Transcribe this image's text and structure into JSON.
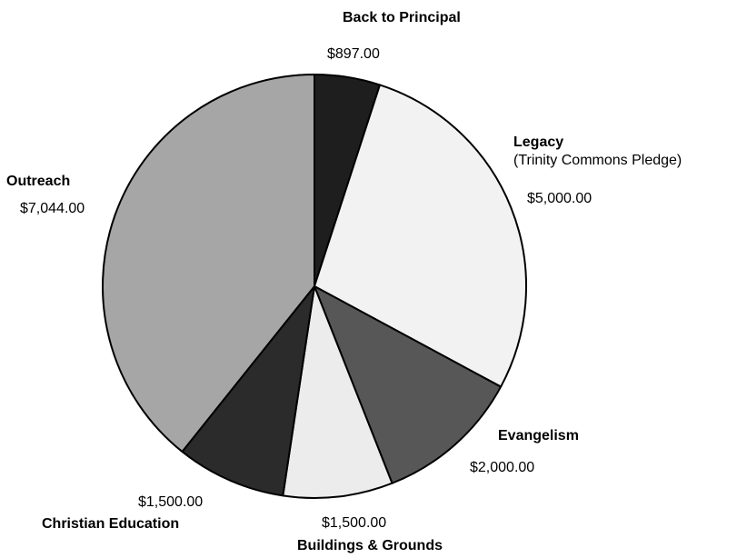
{
  "chart_data": {
    "type": "pie",
    "slices": [
      {
        "name": "Back to Principal",
        "value": 897.0,
        "value_label": "$897.00",
        "color": "#1e1e1e"
      },
      {
        "name": "Legacy",
        "subtitle": "(Trinity Commons Pledge)",
        "value": 5000.0,
        "value_label": "$5,000.00",
        "color": "#f2f2f2"
      },
      {
        "name": "Evangelism",
        "value": 2000.0,
        "value_label": "$2,000.00",
        "color": "#575757"
      },
      {
        "name": "Buildings & Grounds",
        "value": 1500.0,
        "value_label": "$1,500.00",
        "color": "#ececec"
      },
      {
        "name": "Christian Education",
        "value": 1500.0,
        "value_label": "$1,500.00",
        "color": "#2b2b2b"
      },
      {
        "name": "Outreach",
        "value": 7044.0,
        "value_label": "$7,044.00",
        "color": "#a6a6a6"
      }
    ],
    "start_angle_deg": 0,
    "direction": "clockwise"
  }
}
